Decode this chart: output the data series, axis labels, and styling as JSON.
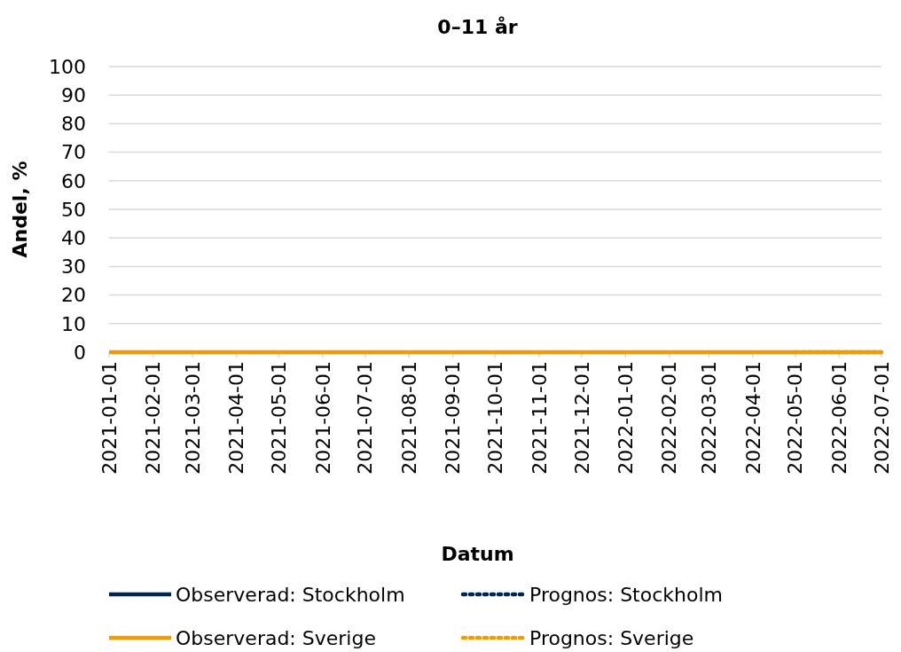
{
  "chart_data": {
    "type": "line",
    "title": "0–11 år",
    "xlabel": "Datum",
    "ylabel": "Andel, %",
    "xlim": [
      "2021-01-01",
      "2022-07-01"
    ],
    "xticks": [
      "2021-01-01",
      "2021-02-01",
      "2021-03-01",
      "2021-04-01",
      "2021-05-01",
      "2021-06-01",
      "2021-07-01",
      "2021-08-01",
      "2021-09-01",
      "2021-10-01",
      "2021-11-01",
      "2021-12-01",
      "2022-01-01",
      "2022-02-01",
      "2022-03-01",
      "2022-04-01",
      "2022-05-01",
      "2022-06-01",
      "2022-07-01"
    ],
    "ylim": [
      0,
      100
    ],
    "yticks": [
      0,
      10,
      20,
      30,
      40,
      50,
      60,
      70,
      80,
      90,
      100
    ],
    "grid": "y",
    "legend": "bottom",
    "series": [
      {
        "name": "Observerad: Stockholm",
        "color": "#002451",
        "line_style": "solid"
      },
      {
        "name": "Prognos: Stockholm",
        "color": "#002451",
        "line_style": "dotted"
      },
      {
        "name": "Observerad: Sverige",
        "color": "#f09b00",
        "line_style": "solid",
        "x": [
          "2021-01-01",
          "2021-04-01",
          "2021-07-01",
          "2021-10-01",
          "2022-01-01",
          "2022-04-01",
          "2022-07-01"
        ],
        "values": [
          0,
          0,
          0,
          0,
          0,
          0,
          0
        ]
      },
      {
        "name": "Prognos: Sverige",
        "color": "#f09b00",
        "line_style": "dotted",
        "x": [
          "2022-05-01",
          "2022-06-01",
          "2022-07-01"
        ],
        "values": [
          0,
          0,
          0
        ]
      }
    ]
  }
}
